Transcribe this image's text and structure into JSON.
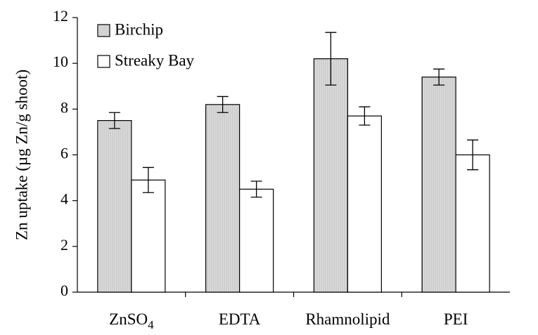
{
  "chart_data": {
    "type": "bar",
    "title": "",
    "xlabel": "",
    "ylabel": "Zn uptake (µg Zn/g shoot)",
    "ylim": [
      0,
      12
    ],
    "yticks": [
      0,
      2,
      4,
      6,
      8,
      10,
      12
    ],
    "grid": false,
    "legend_position": "top-left",
    "categories": [
      {
        "label": "ZnSO",
        "sub": "4"
      },
      {
        "label": "EDTA",
        "sub": ""
      },
      {
        "label": "Rhamnolipid",
        "sub": ""
      },
      {
        "label": "PEI",
        "sub": ""
      }
    ],
    "series": [
      {
        "name": "Birchip",
        "color": "#dcdcdc",
        "hatch": true,
        "values": [
          7.5,
          8.2,
          10.2,
          9.4
        ],
        "errors": [
          0.35,
          0.35,
          1.15,
          0.35
        ]
      },
      {
        "name": "Streaky Bay",
        "color": "#ffffff",
        "hatch": false,
        "values": [
          4.9,
          4.5,
          7.7,
          6.0
        ],
        "errors": [
          0.55,
          0.35,
          0.4,
          0.65
        ]
      }
    ]
  }
}
